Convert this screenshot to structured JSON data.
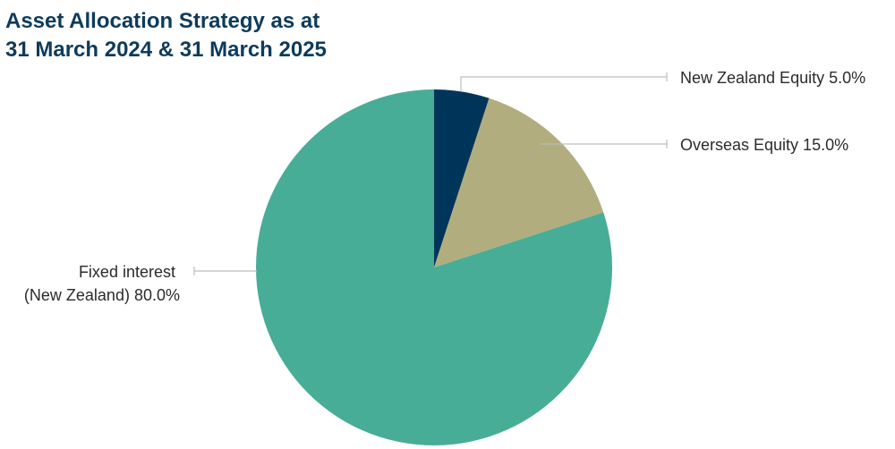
{
  "chart_data": {
    "type": "pie",
    "title": [
      "Asset Allocation Strategy as at",
      "31 March 2024 & 31 March 2025"
    ],
    "start_angle_deg": 0,
    "direction": "clockwise",
    "slices": [
      {
        "name": "New Zealand Equity",
        "value": 5.0,
        "label": "New Zealand Equity 5.0%",
        "color": "#00355a"
      },
      {
        "name": "Overseas Equity",
        "value": 15.0,
        "label": "Overseas Equity 15.0%",
        "color": "#b2ad7e"
      },
      {
        "name": "Fixed interest (New Zealand)",
        "value": 80.0,
        "label_lines": [
          "Fixed interest",
          "(New Zealand) 80.0%"
        ],
        "color": "#47ad97"
      }
    ]
  },
  "colors": {
    "title": "#0d3b5c",
    "leader_line": "#bdbdbd",
    "label_text": "#2b2b2b"
  }
}
